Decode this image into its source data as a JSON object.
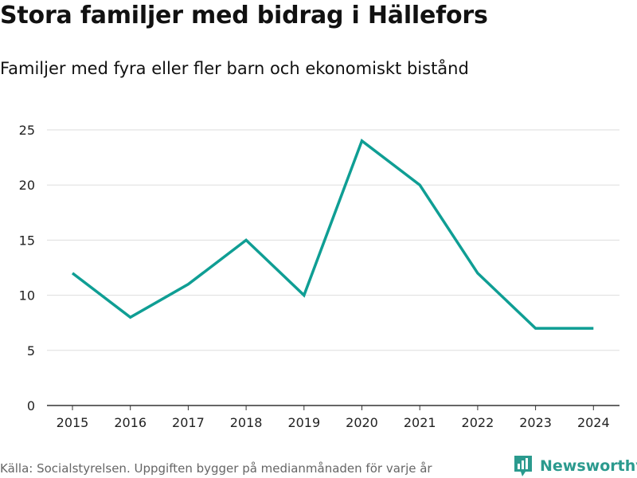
{
  "chart_data": {
    "type": "line",
    "title": "Stora familjer med bidrag i Hällefors",
    "subtitle": "Familjer med fyra eller fler barn och ekonomiskt bistånd",
    "xlabel": "",
    "ylabel": "",
    "categories": [
      "2015",
      "2016",
      "2017",
      "2018",
      "2019",
      "2020",
      "2021",
      "2022",
      "2023",
      "2024"
    ],
    "series": [
      {
        "name": "Familjer med fyra eller fler barn och ekonomiskt bistånd",
        "values": [
          12,
          8,
          11,
          15,
          10,
          24,
          20,
          12,
          7,
          7
        ]
      }
    ],
    "ylim": [
      0,
      25
    ],
    "yticks": [
      0,
      5,
      10,
      15,
      20,
      25
    ],
    "grid": true,
    "colors": {
      "line": "#0f9e94",
      "grid": "#dddddd",
      "axis": "#333333"
    }
  },
  "footer": {
    "source": "Källa: Socialstyrelsen. Uppgiften bygger på medianmånaden för varje år",
    "brand": "Newsworthy",
    "brand_icon": "newsworthy-logo-icon",
    "brand_color": "#2b9a8e"
  }
}
